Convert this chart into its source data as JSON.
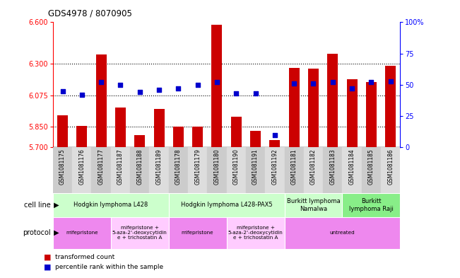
{
  "title": "GDS4978 / 8070905",
  "samples": [
    "GSM1081175",
    "GSM1081176",
    "GSM1081177",
    "GSM1081187",
    "GSM1081188",
    "GSM1081189",
    "GSM1081178",
    "GSM1081179",
    "GSM1081180",
    "GSM1081190",
    "GSM1081191",
    "GSM1081192",
    "GSM1081181",
    "GSM1081182",
    "GSM1081183",
    "GSM1081184",
    "GSM1081185",
    "GSM1081186"
  ],
  "transformed_count_all": [
    5.93,
    5.855,
    6.37,
    5.985,
    5.79,
    5.975,
    5.85,
    5.85,
    6.58,
    5.92,
    5.82,
    5.75,
    6.27,
    6.265,
    6.375,
    6.19,
    6.17,
    6.285
  ],
  "percentile": [
    45,
    42,
    52,
    50,
    44,
    46,
    47,
    50,
    52,
    43,
    43,
    10,
    51,
    51,
    52,
    47,
    52,
    53
  ],
  "ylim": [
    5.7,
    6.6
  ],
  "yticks": [
    5.7,
    5.85,
    6.075,
    6.3,
    6.6
  ],
  "right_yticks": [
    0,
    25,
    50,
    75,
    100
  ],
  "bar_color": "#cc0000",
  "dot_color": "#0000cc",
  "bar_bottom": 5.7,
  "cell_line_groups": [
    {
      "label": "Hodgkin lymphoma L428",
      "start": 0,
      "end": 6,
      "color": "#ccffcc"
    },
    {
      "label": "Hodgkin lymphoma L428-PAX5",
      "start": 6,
      "end": 12,
      "color": "#ccffcc"
    },
    {
      "label": "Burkitt lymphoma\nNamalwa",
      "start": 12,
      "end": 15,
      "color": "#ccffcc"
    },
    {
      "label": "Burkitt\nlymphoma Raji",
      "start": 15,
      "end": 18,
      "color": "#88ee88"
    }
  ],
  "protocol_groups": [
    {
      "label": "mifepristone",
      "start": 0,
      "end": 3,
      "color": "#ee88ee"
    },
    {
      "label": "mifepristone +\n5-aza-2'-deoxycytidin\ne + trichostatin A",
      "start": 3,
      "end": 6,
      "color": "#ffccff"
    },
    {
      "label": "mifepristone",
      "start": 6,
      "end": 9,
      "color": "#ee88ee"
    },
    {
      "label": "mifepristone +\n5-aza-2'-deoxycytidin\ne + trichostatin A",
      "start": 9,
      "end": 12,
      "color": "#ffccff"
    },
    {
      "label": "untreated",
      "start": 12,
      "end": 18,
      "color": "#ee88ee"
    }
  ]
}
